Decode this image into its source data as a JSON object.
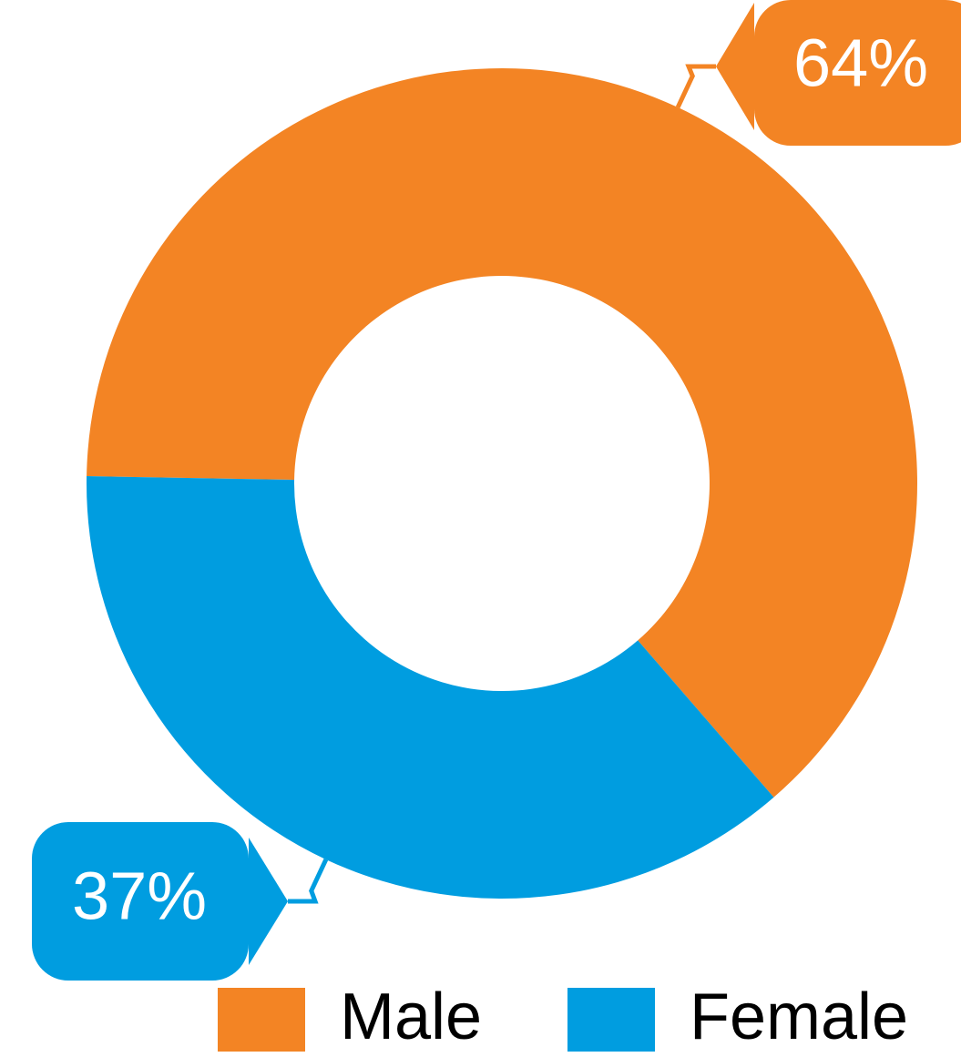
{
  "chart_data": {
    "type": "donut",
    "categories": [
      "Male",
      "Female"
    ],
    "values": [
      64,
      37
    ],
    "value_labels": [
      "64%",
      "37%"
    ],
    "colors": [
      "#f38424",
      "#009de0"
    ]
  }
}
